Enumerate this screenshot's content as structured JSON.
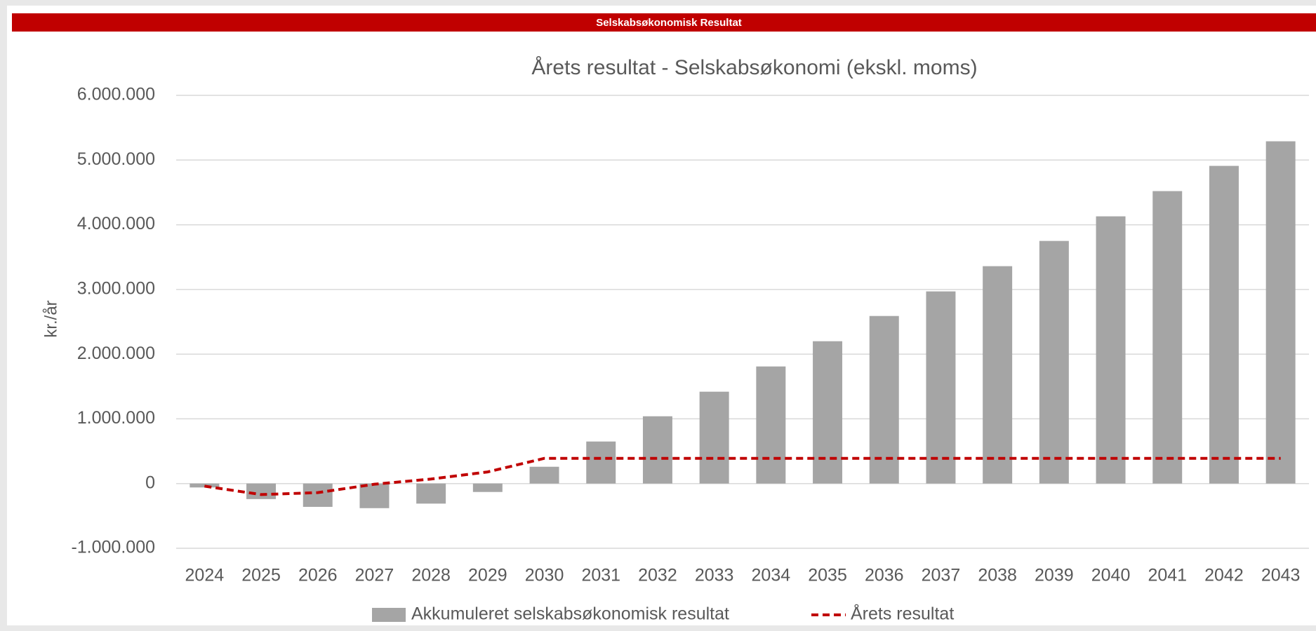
{
  "header": {
    "title": "Selskabsøkonomisk Resultat"
  },
  "chart_data": {
    "type": "bar",
    "title": "Årets resultat - Selskabsøkonomi (ekskl. moms)",
    "y_label": "kr./år",
    "categories": [
      "2024",
      "2025",
      "2026",
      "2027",
      "2028",
      "2029",
      "2030",
      "2031",
      "2032",
      "2033",
      "2034",
      "2035",
      "2036",
      "2037",
      "2038",
      "2039",
      "2040",
      "2041",
      "2042",
      "2043"
    ],
    "series": [
      {
        "name": "Akkumuleret selskabsøkonomisk resultat",
        "type": "bar",
        "color": "#a5a5a5",
        "values": [
          -60000,
          -240000,
          -360000,
          -380000,
          -310000,
          -130000,
          260000,
          650000,
          1040000,
          1420000,
          1810000,
          2200000,
          2590000,
          2970000,
          3360000,
          3750000,
          4130000,
          4520000,
          4910000,
          5290000
        ]
      },
      {
        "name": "Årets resultat",
        "type": "line",
        "dashed": true,
        "color": "#c00000",
        "values": [
          -40000,
          -170000,
          -140000,
          -10000,
          70000,
          180000,
          390000,
          390000,
          390000,
          390000,
          390000,
          390000,
          390000,
          390000,
          390000,
          390000,
          390000,
          390000,
          390000,
          390000
        ]
      }
    ],
    "ylim": [
      -1000000,
      6000000
    ],
    "yticks": [
      {
        "value": -1000000,
        "label": "-1.000.000"
      },
      0,
      {
        "value": 1000000,
        "label": "1.000.000"
      },
      {
        "value": 2000000,
        "label": "2.000.000"
      },
      {
        "value": 3000000,
        "label": "3.000.000"
      },
      {
        "value": 4000000,
        "label": "4.000.000"
      },
      {
        "value": 5000000,
        "label": "5.000.000"
      },
      {
        "value": 6000000,
        "label": "6.000.000"
      }
    ],
    "grid": true,
    "legend": "bottom"
  }
}
